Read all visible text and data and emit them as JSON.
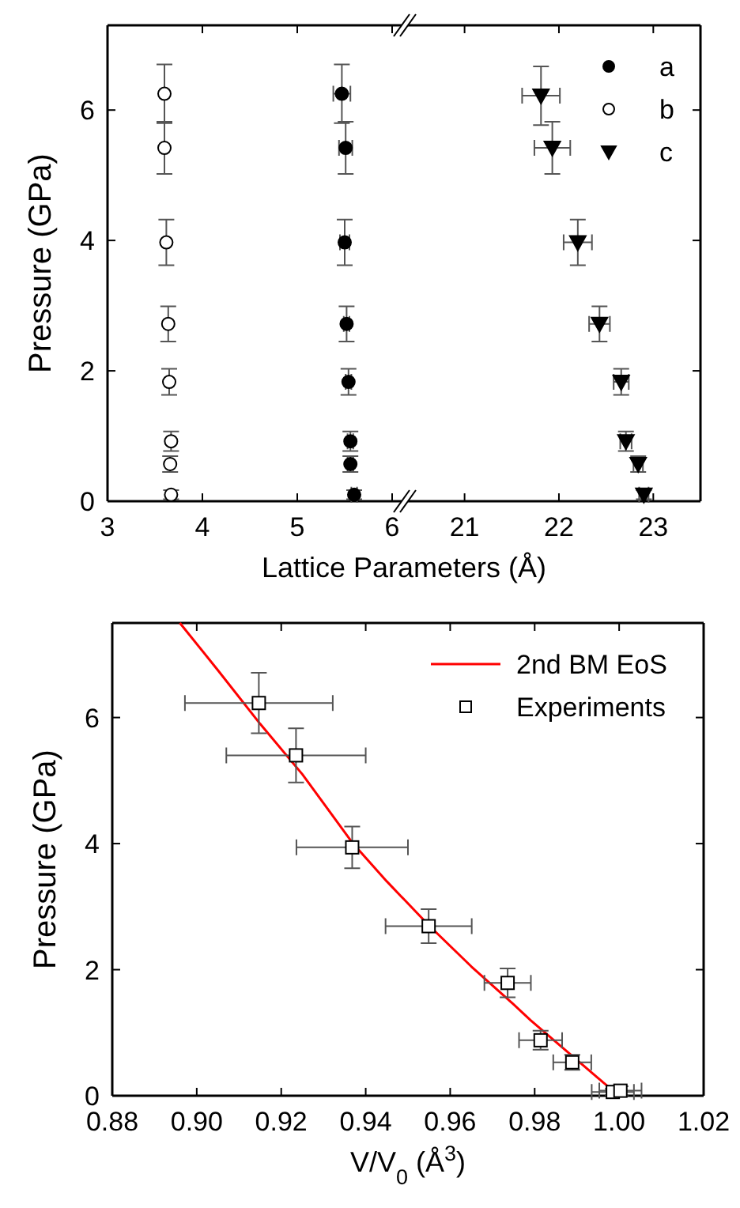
{
  "chart_data": [
    {
      "type": "scatter",
      "xlabel": "Lattice Parameters (Å)",
      "ylabel": "Pressure (GPa)",
      "xlim": [
        3,
        6.1
      ],
      "xticks": [
        3,
        4,
        5,
        6
      ],
      "ylim": [
        0,
        7.3
      ],
      "yticks": [
        0,
        2,
        4,
        6
      ],
      "legend": "top right",
      "series": [
        {
          "name": "a",
          "color": "#000000",
          "marker": "circle",
          "x": [
            5.47,
            5.51,
            5.5,
            5.52,
            5.54,
            5.56,
            5.56,
            5.6
          ],
          "values": [
            6.25,
            5.42,
            3.97,
            2.72,
            1.83,
            0.92,
            0.57,
            0.1
          ],
          "errors": [
            0.45,
            0.4,
            0.35,
            0.27,
            0.2,
            0.15,
            0.12,
            0.07
          ],
          "xerrors": [
            0.09,
            0.07,
            0.05,
            0.03,
            0.03,
            0.03,
            0.03,
            0.03
          ]
        },
        {
          "name": "b",
          "color": "#ffffff",
          "marker": "circle",
          "x": [
            3.6,
            3.6,
            3.62,
            3.64,
            3.65,
            3.67,
            3.66,
            3.67
          ],
          "values": [
            6.25,
            5.42,
            3.97,
            2.72,
            1.83,
            0.92,
            0.57,
            0.1
          ],
          "errors": [
            0.45,
            0.4,
            0.35,
            0.27,
            0.2,
            0.15,
            0.12,
            0.07
          ]
        }
      ]
    },
    {
      "type": "scatter",
      "xlim": [
        20.4,
        23.5
      ],
      "xticks": [
        21,
        22,
        23
      ],
      "ylim": [
        0,
        7.3
      ],
      "yticks": [
        0,
        2,
        4,
        6
      ],
      "tick_labels": "x",
      "legend": "top right",
      "series": [
        {
          "name": "c",
          "color": "#000000",
          "marker": "triangle",
          "x": [
            21.81,
            21.93,
            22.2,
            22.43,
            22.66,
            22.71,
            22.84,
            22.9
          ],
          "values": [
            6.22,
            5.42,
            3.97,
            2.72,
            1.83,
            0.92,
            0.57,
            0.1
          ],
          "errors": [
            0.45,
            0.4,
            0.35,
            0.27,
            0.2,
            0.15,
            0.12,
            0.07
          ],
          "xerrors": [
            0.2,
            0.19,
            0.15,
            0.11,
            0.08,
            0.06,
            0.05,
            0.05
          ]
        }
      ]
    },
    {
      "type": "scatter",
      "xlabel": "V/V$_{0}$ (Å$^{3}$)",
      "ylabel": "Pressure (GPa)",
      "xlim": [
        0.88,
        1.02
      ],
      "xticks": [
        {
          "value": 0.88,
          "label": "0.88"
        },
        {
          "value": 0.9,
          "label": "0.90"
        },
        {
          "value": 0.92,
          "label": "0.92"
        },
        {
          "value": 0.94,
          "label": "0.94"
        },
        {
          "value": 0.96,
          "label": "0.96"
        },
        {
          "value": 0.98,
          "label": "0.98"
        },
        {
          "value": 1.0,
          "label": "1.00"
        },
        {
          "value": 1.02,
          "label": "1.02"
        }
      ],
      "ylim": [
        0,
        7.5
      ],
      "yticks": [
        0,
        2,
        4,
        6
      ],
      "legend": "top right",
      "series": [
        {
          "name": "2nd BM EoS",
          "type": "line",
          "color": "#ff0000",
          "line_style": "solid",
          "x": [
            0.896,
            0.905,
            0.915,
            0.925,
            0.937,
            0.945,
            0.955,
            0.965,
            0.975,
            0.979,
            0.995,
            1.0
          ],
          "values": [
            7.5,
            6.75,
            5.9,
            5.1,
            4.0,
            3.4,
            2.7,
            2.05,
            1.45,
            1.2,
            0.28,
            0.0
          ]
        },
        {
          "name": "Experiments",
          "color": "#ffffff",
          "marker": "square",
          "x": [
            0.9147,
            0.9235,
            0.9368,
            0.9549,
            0.9736,
            0.9814,
            0.9889,
            0.9985,
            1.0003
          ],
          "values": [
            6.23,
            5.4,
            3.94,
            2.69,
            1.79,
            0.88,
            0.53,
            0.06,
            0.08
          ],
          "errors": [
            0.48,
            0.43,
            0.33,
            0.27,
            0.23,
            0.15,
            0.12,
            0.05,
            0.07
          ],
          "xerrors": [
            0.0175,
            0.0165,
            0.0132,
            0.0102,
            0.0055,
            0.0051,
            0.0045,
            0.005,
            0.005
          ]
        }
      ]
    }
  ]
}
